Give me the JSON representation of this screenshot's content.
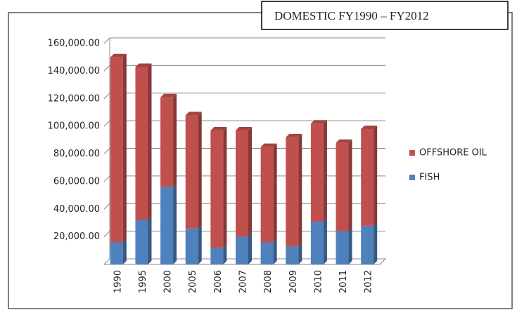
{
  "chart_data": {
    "type": "bar",
    "title": "DOMESTIC FY1990 – FY2012",
    "categories": [
      "1990",
      "1995",
      "2000",
      "2005",
      "2006",
      "2007",
      "2008",
      "2009",
      "2010",
      "2011",
      "2012"
    ],
    "series": [
      {
        "name": "FISH",
        "color": "#4f81bd",
        "values": [
          16000,
          32000,
          56000,
          26000,
          12000,
          20000,
          16000,
          13000,
          31000,
          24000,
          28000
        ]
      },
      {
        "name": "OFFSHORE OIL",
        "color": "#c0504d",
        "values": [
          134000,
          111000,
          65000,
          82000,
          85000,
          77000,
          69000,
          79000,
          71000,
          64000,
          70000
        ]
      }
    ],
    "stacked": true,
    "ylim": [
      0,
      160000
    ],
    "yticks": [
      {
        "value": 20000,
        "label": "20,000.00"
      },
      {
        "value": 40000,
        "label": "40,000.00"
      },
      {
        "value": 60000,
        "label": "60,000.00"
      },
      {
        "value": 80000,
        "label": "80,000.00"
      },
      {
        "value": 100000,
        "label": "100,000.00"
      },
      {
        "value": 120000,
        "label": "120,000.00"
      },
      {
        "value": 140000,
        "label": "140,000.00"
      },
      {
        "value": 160000,
        "label": "160,000.00"
      }
    ],
    "grid": true
  }
}
